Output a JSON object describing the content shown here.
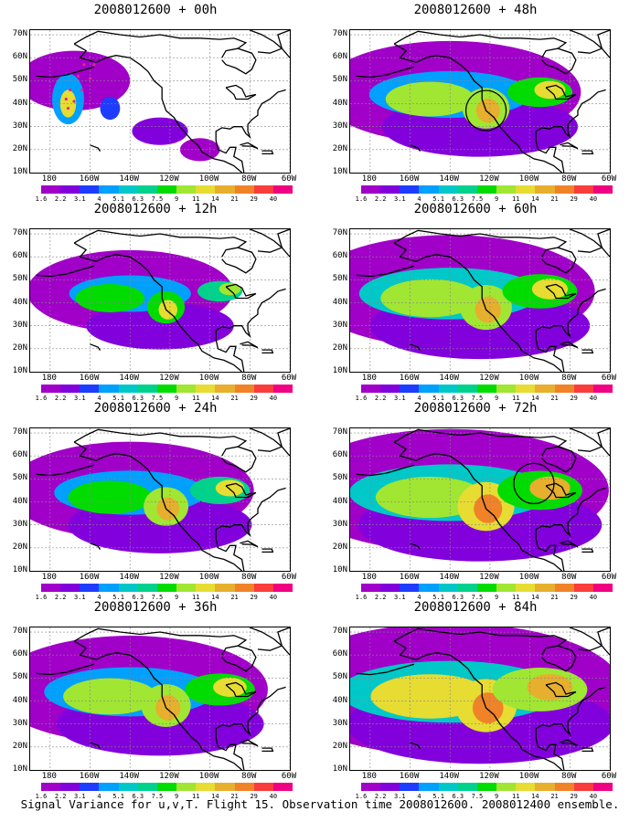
{
  "panels": [
    {
      "title": "2008012600 + 00h",
      "col": 0,
      "row": 0,
      "intensity": 0.35,
      "marker": "dots",
      "circle": null
    },
    {
      "title": "2008012600 + 12h",
      "col": 0,
      "row": 1,
      "intensity": 0.45,
      "marker": null,
      "circle": null
    },
    {
      "title": "2008012600 + 24h",
      "col": 0,
      "row": 2,
      "intensity": 0.6,
      "marker": null,
      "circle": null
    },
    {
      "title": "2008012600 + 36h",
      "col": 0,
      "row": 3,
      "intensity": 0.7,
      "marker": null,
      "circle": null
    },
    {
      "title": "2008012600 + 48h",
      "col": 1,
      "row": 0,
      "intensity": 0.65,
      "marker": null,
      "circle": {
        "lon": -122,
        "lat": 37
      }
    },
    {
      "title": "2008012600 + 60h",
      "col": 1,
      "row": 1,
      "intensity": 0.75,
      "marker": null,
      "circle": null
    },
    {
      "title": "2008012600 + 72h",
      "col": 1,
      "row": 2,
      "intensity": 0.85,
      "marker": null,
      "circle": {
        "lon": -98,
        "lat": 48
      }
    },
    {
      "title": "2008012600 + 84h",
      "col": 1,
      "row": 3,
      "intensity": 0.95,
      "marker": null,
      "circle": null
    }
  ],
  "axes": {
    "lat_labels": [
      "70N",
      "60N",
      "50N",
      "40N",
      "30N",
      "20N",
      "10N"
    ],
    "lon_labels": [
      "180",
      "160W",
      "140W",
      "120W",
      "100W",
      "80W",
      "60W"
    ]
  },
  "colorbar": {
    "colors": [
      "#a000c8",
      "#8200dc",
      "#1e3cff",
      "#00a0ff",
      "#00c8c8",
      "#00d28c",
      "#00dc00",
      "#a0e632",
      "#e6dc32",
      "#e6af2d",
      "#f08228",
      "#fa3c3c",
      "#f00082"
    ],
    "labels": [
      "1.6",
      "2.2",
      "3.1",
      "4",
      "5.1",
      "6.3",
      "7.5",
      "9",
      "11",
      "14",
      "21",
      "29",
      "40"
    ]
  },
  "caption": "Signal Variance for u,v,T. Flight 15. Observation time 2008012600. 2008012400 ensemble."
}
